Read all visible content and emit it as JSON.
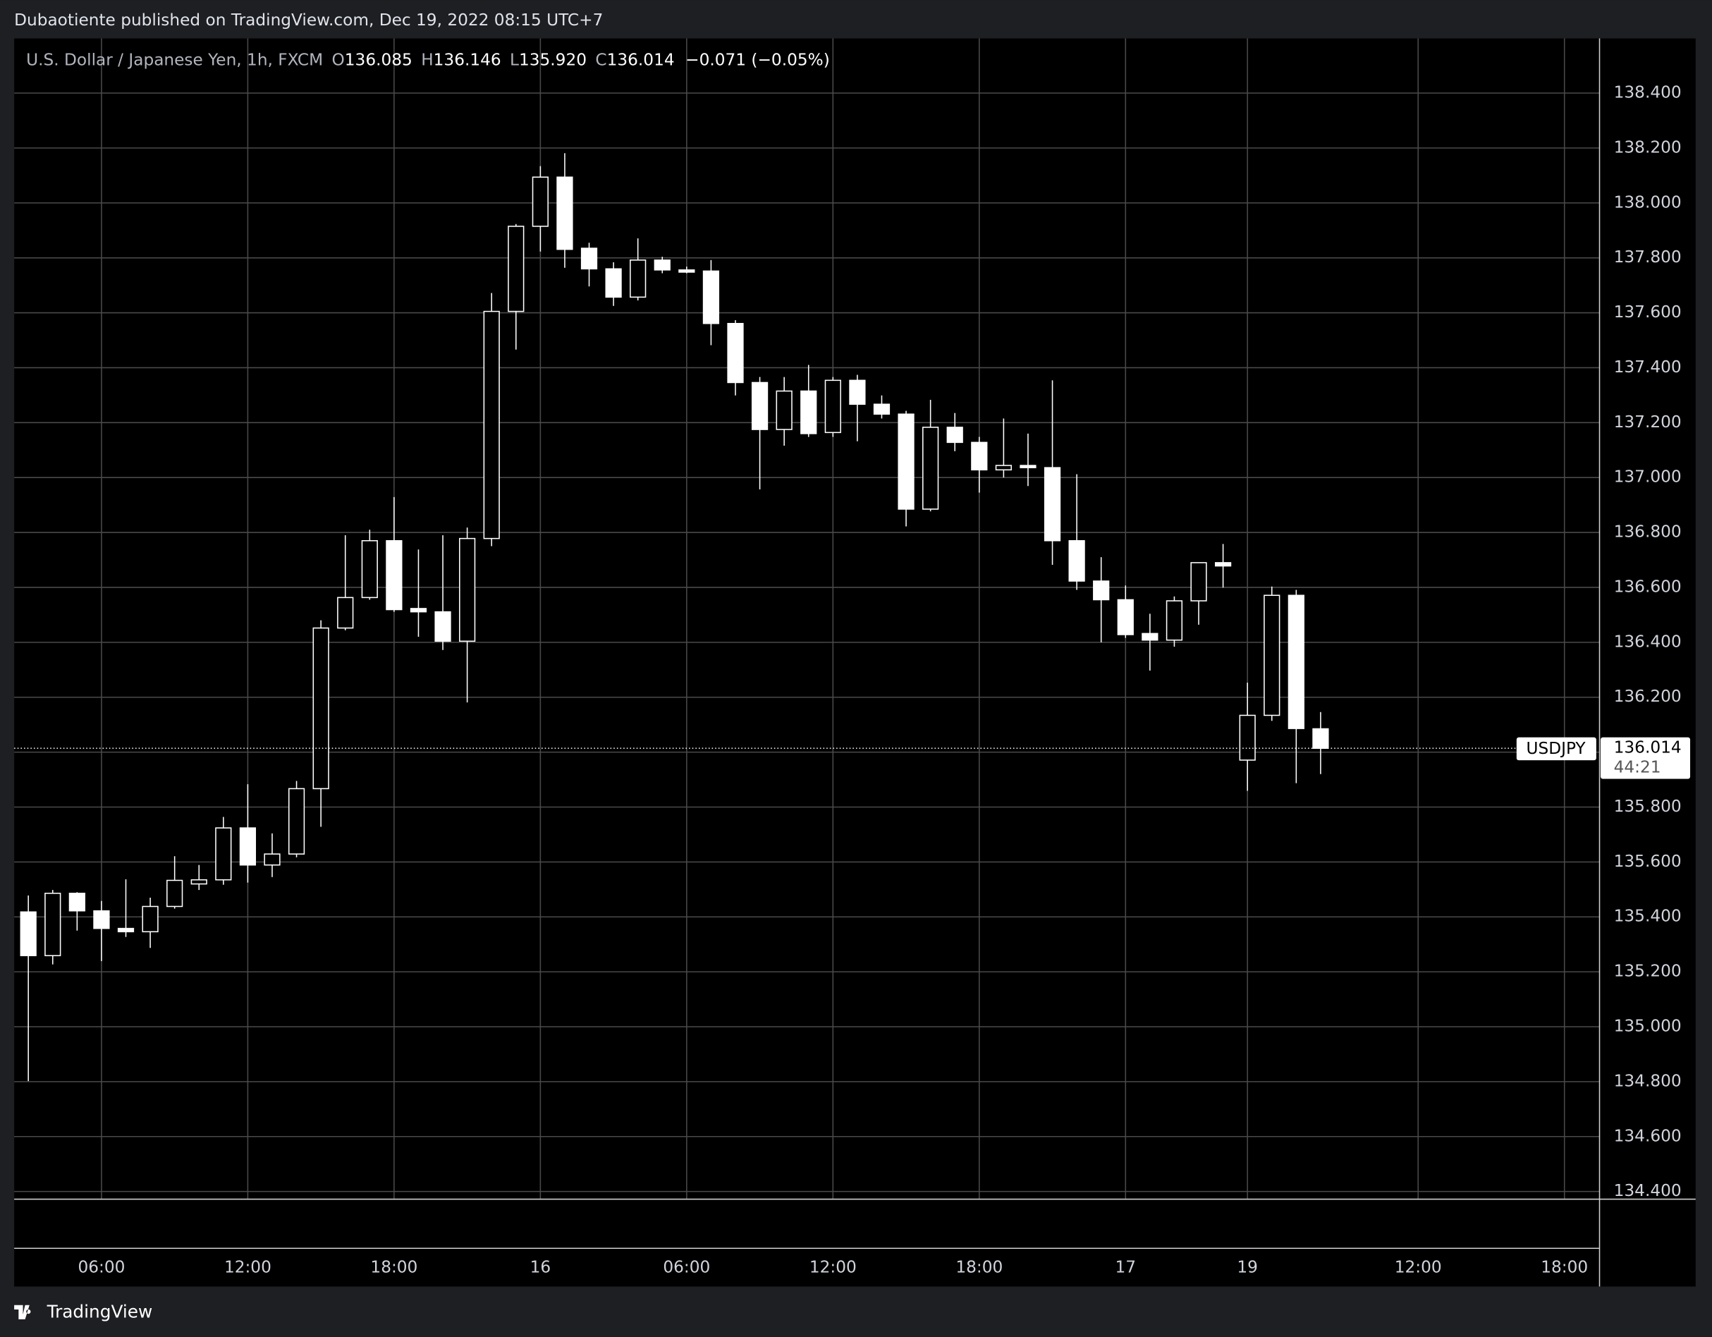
{
  "publisher": "Dubaotiente published on TradingView.com, Dec 19, 2022 08:15 UTC+7",
  "footer": "TradingView",
  "chart_data": {
    "type": "candlestick",
    "title": "U.S. Dollar / Japanese Yen, 1h, FXCM",
    "ohlc_legend": [
      {
        "label": "O",
        "value": "136.085"
      },
      {
        "label": "H",
        "value": "136.146"
      },
      {
        "label": "L",
        "value": "135.920"
      },
      {
        "label": "C",
        "value": "136.014"
      }
    ],
    "change": "−0.071 (−0.05%)",
    "up_color": "#000000",
    "down_color": "#ffffff",
    "border_color": "#ffffff",
    "grid": true,
    "x": [
      0,
      1,
      2,
      3,
      4,
      5,
      6,
      7,
      8,
      9,
      10,
      11,
      12,
      13,
      14,
      15,
      16,
      17,
      18,
      19,
      20,
      21,
      22,
      23,
      24,
      25,
      26,
      27,
      28,
      29,
      30,
      31,
      32,
      33,
      34,
      35,
      36,
      37,
      38,
      39,
      40,
      41,
      42,
      43,
      44,
      45,
      46,
      47,
      48,
      49,
      50,
      51,
      52,
      53
    ],
    "open": [
      135.418,
      135.259,
      135.486,
      135.422,
      135.358,
      135.346,
      135.438,
      135.52,
      135.535,
      135.724,
      135.589,
      135.629,
      135.867,
      136.452,
      136.563,
      136.77,
      136.523,
      136.511,
      136.404,
      136.778,
      137.605,
      137.915,
      138.094,
      137.835,
      137.76,
      137.657,
      137.792,
      137.756,
      137.752,
      137.561,
      137.346,
      137.175,
      137.315,
      137.164,
      137.354,
      137.267,
      137.231,
      136.885,
      137.183,
      137.128,
      137.028,
      137.044,
      137.036,
      136.77,
      136.623,
      136.555,
      136.432,
      136.408,
      136.551,
      136.69,
      135.971,
      136.134,
      136.571,
      136.085
    ],
    "high": [
      135.478,
      135.498,
      135.49,
      135.458,
      135.537,
      135.47,
      135.621,
      135.589,
      135.764,
      135.883,
      135.704,
      135.895,
      136.48,
      136.79,
      136.81,
      136.929,
      136.738,
      136.79,
      136.818,
      137.672,
      137.923,
      138.134,
      138.181,
      137.855,
      137.784,
      137.871,
      137.804,
      137.768,
      137.792,
      137.573,
      137.366,
      137.366,
      137.41,
      137.366,
      137.374,
      137.299,
      137.243,
      137.283,
      137.235,
      137.148,
      137.215,
      137.16,
      137.354,
      137.012,
      136.71,
      136.607,
      136.504,
      136.567,
      136.69,
      136.758,
      136.253,
      136.603,
      136.591,
      136.146
    ],
    "low": [
      134.802,
      135.227,
      135.35,
      135.239,
      135.327,
      135.287,
      135.43,
      135.498,
      135.517,
      135.525,
      135.545,
      135.617,
      135.728,
      136.444,
      136.555,
      136.511,
      136.42,
      136.372,
      136.181,
      136.75,
      137.466,
      137.823,
      137.764,
      137.696,
      137.625,
      137.645,
      137.744,
      137.744,
      137.482,
      137.299,
      136.957,
      137.116,
      137.148,
      137.148,
      137.132,
      137.215,
      136.822,
      136.877,
      137.096,
      136.945,
      137.0,
      136.969,
      136.682,
      136.591,
      136.4,
      136.416,
      136.297,
      136.384,
      136.464,
      136.599,
      135.859,
      136.114,
      135.887,
      135.92
    ],
    "close": [
      135.259,
      135.486,
      135.422,
      135.358,
      135.346,
      135.438,
      135.533,
      135.535,
      135.724,
      135.589,
      135.629,
      135.867,
      136.452,
      136.563,
      136.77,
      136.519,
      136.511,
      136.404,
      136.778,
      137.605,
      137.915,
      138.094,
      137.831,
      137.76,
      137.657,
      137.792,
      137.756,
      137.748,
      137.561,
      137.346,
      137.175,
      137.315,
      137.16,
      137.354,
      137.267,
      137.231,
      136.885,
      137.183,
      137.128,
      137.028,
      137.044,
      137.036,
      136.77,
      136.623,
      136.555,
      136.428,
      136.408,
      136.551,
      136.69,
      136.678,
      136.134,
      136.571,
      136.086,
      136.014
    ],
    "xlim": [
      -0.58,
      64.44
    ],
    "xticks": [
      {
        "value": 3,
        "label": "06:00"
      },
      {
        "value": 9,
        "label": "12:00"
      },
      {
        "value": 15,
        "label": "18:00"
      },
      {
        "value": 21,
        "label": "16"
      },
      {
        "value": 27,
        "label": "06:00"
      },
      {
        "value": 33,
        "label": "12:00"
      },
      {
        "value": 39,
        "label": "18:00"
      },
      {
        "value": 45,
        "label": "17"
      },
      {
        "value": 50,
        "label": "19"
      },
      {
        "value": 57,
        "label": "12:00"
      },
      {
        "value": 63,
        "label": "18:00"
      }
    ],
    "ylim": [
      134.372,
      138.599
    ],
    "yticks": [
      {
        "value": 134.4,
        "label": "134.400"
      },
      {
        "value": 134.6,
        "label": "134.600"
      },
      {
        "value": 134.8,
        "label": "134.800"
      },
      {
        "value": 135.0,
        "label": "135.000"
      },
      {
        "value": 135.2,
        "label": "135.200"
      },
      {
        "value": 135.4,
        "label": "135.400"
      },
      {
        "value": 135.6,
        "label": "135.600"
      },
      {
        "value": 135.8,
        "label": "135.800"
      },
      {
        "value": 136.0,
        "label": "136.000"
      },
      {
        "value": 136.2,
        "label": "136.200"
      },
      {
        "value": 136.4,
        "label": "136.400"
      },
      {
        "value": 136.6,
        "label": "136.600"
      },
      {
        "value": 136.8,
        "label": "136.800"
      },
      {
        "value": 137.0,
        "label": "137.000"
      },
      {
        "value": 137.2,
        "label": "137.200"
      },
      {
        "value": 137.4,
        "label": "137.400"
      },
      {
        "value": 137.6,
        "label": "137.600"
      },
      {
        "value": 137.8,
        "label": "137.800"
      },
      {
        "value": 138.0,
        "label": "138.000"
      },
      {
        "value": 138.2,
        "label": "138.200"
      },
      {
        "value": 138.4,
        "label": "138.400"
      }
    ],
    "last_price": {
      "symbol": "USDJPY",
      "value": 136.014,
      "countdown": "44:21"
    }
  }
}
